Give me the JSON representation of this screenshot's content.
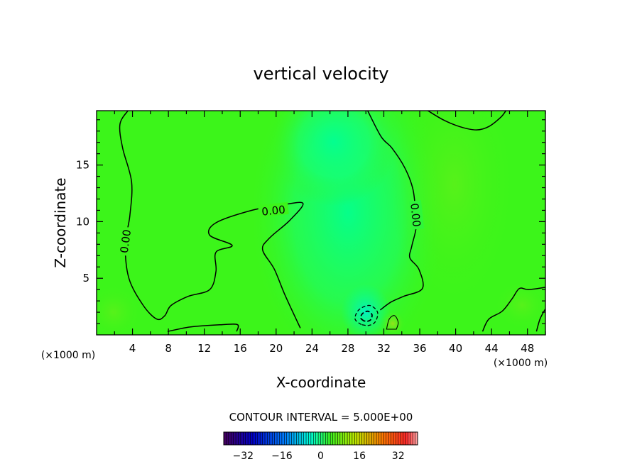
{
  "chart_data": {
    "type": "contour",
    "title": "vertical velocity",
    "xlabel": "X-coordinate",
    "ylabel": "Z-coordinate",
    "x_unit_left": "(×1000 m)",
    "x_unit_right": "(×1000 m)",
    "xlim": [
      0,
      50
    ],
    "ylim": [
      0,
      19.8
    ],
    "xticks": [
      4,
      8,
      12,
      16,
      20,
      24,
      28,
      32,
      36,
      40,
      44,
      48
    ],
    "yticks": [
      5,
      10,
      15
    ],
    "contour_interval_text": "CONTOUR INTERVAL = 5.000E+00",
    "contour_labels": [
      "0.00",
      "0.00",
      "0.00"
    ],
    "colorbar": {
      "min": -40,
      "max": 40,
      "ticks": [
        -32,
        -16,
        0,
        16,
        32
      ],
      "tick_labels": [
        "−32",
        "−16",
        "0",
        "16",
        "32"
      ]
    },
    "zero_contours": [
      {
        "name": "left",
        "points": [
          [
            3.5,
            19.8
          ],
          [
            2.6,
            18.6
          ],
          [
            2.9,
            16.5
          ],
          [
            3.9,
            13.5
          ],
          [
            3.7,
            10.5
          ],
          [
            3.2,
            8.0
          ],
          [
            3.6,
            5.0
          ],
          [
            5.2,
            2.6
          ],
          [
            6.7,
            1.4
          ],
          [
            7.6,
            1.7
          ],
          [
            8.3,
            2.6
          ],
          [
            10.2,
            3.4
          ],
          [
            12.6,
            4.0
          ],
          [
            13.3,
            5.6
          ],
          [
            13.3,
            7.3
          ],
          [
            15.1,
            7.9
          ],
          [
            12.6,
            8.8
          ],
          [
            13.3,
            9.9
          ],
          [
            17.3,
            11.0
          ],
          [
            20.8,
            11.5
          ],
          [
            23.0,
            11.6
          ],
          [
            21.5,
            10.1
          ],
          [
            19.2,
            8.5
          ],
          [
            18.5,
            7.5
          ],
          [
            19.8,
            5.8
          ],
          [
            21.0,
            3.5
          ],
          [
            22.7,
            0.6
          ]
        ]
      },
      {
        "name": "bottom",
        "points": [
          [
            7.9,
            0.3
          ],
          [
            10.5,
            0.7
          ],
          [
            14.0,
            0.9
          ],
          [
            15.7,
            0.9
          ],
          [
            15.6,
            0.3
          ]
        ]
      },
      {
        "name": "right",
        "points": [
          [
            30.2,
            19.8
          ],
          [
            31.7,
            17.5
          ],
          [
            32.9,
            16.5
          ],
          [
            34.3,
            14.8
          ],
          [
            35.2,
            13.0
          ],
          [
            35.5,
            11.2
          ],
          [
            35.6,
            9.5
          ],
          [
            35.1,
            7.8
          ],
          [
            34.9,
            6.8
          ],
          [
            35.9,
            5.8
          ],
          [
            36.3,
            4.1
          ],
          [
            34.2,
            3.4
          ],
          [
            32.8,
            2.9
          ],
          [
            31.6,
            2.2
          ]
        ]
      },
      {
        "name": "upper-right",
        "points": [
          [
            36.9,
            19.8
          ],
          [
            38.6,
            19.0
          ],
          [
            40.4,
            18.4
          ],
          [
            42.3,
            18.1
          ],
          [
            43.7,
            18.4
          ],
          [
            45.0,
            19.2
          ],
          [
            45.6,
            19.8
          ]
        ]
      },
      {
        "name": "lower-right",
        "points": [
          [
            43.0,
            0.3
          ],
          [
            43.7,
            1.4
          ],
          [
            45.2,
            2.1
          ],
          [
            46.3,
            3.2
          ],
          [
            47.1,
            4.1
          ],
          [
            48.1,
            4.0
          ],
          [
            50.0,
            4.2
          ]
        ]
      },
      {
        "name": "edge-right",
        "points": [
          [
            49.0,
            0.3
          ],
          [
            49.4,
            1.4
          ],
          [
            50.0,
            2.3
          ]
        ]
      }
    ],
    "negative_contours": [
      {
        "name": "minus-5",
        "points": [
          [
            29.5,
            0.9
          ],
          [
            28.8,
            1.4
          ],
          [
            29.2,
            2.2
          ],
          [
            30.4,
            2.6
          ],
          [
            31.3,
            2.0
          ],
          [
            31.0,
            1.1
          ],
          [
            30.2,
            0.8
          ]
        ]
      }
    ],
    "positive_contours": [
      {
        "name": "plus-5",
        "points": [
          [
            32.3,
            0.5
          ],
          [
            32.6,
            1.4
          ],
          [
            33.2,
            1.7
          ],
          [
            33.6,
            1.1
          ],
          [
            33.4,
            0.5
          ]
        ]
      }
    ],
    "field_colors": {
      "background": "#3cf51a",
      "updraft_core": "#00ff96",
      "updraft_mid": "#1cff5e",
      "positive_patch": "#8ce81a",
      "weak_positive": "#52f01a"
    }
  }
}
